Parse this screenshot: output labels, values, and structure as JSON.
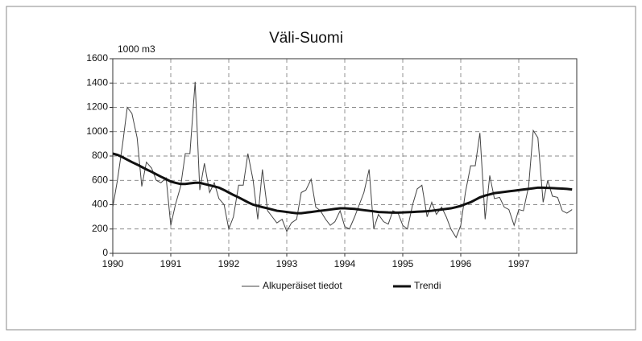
{
  "chart_data": {
    "type": "line",
    "title": "Väli-Suomi",
    "y_label": "1000 m3",
    "x": [
      1990,
      1990.08,
      1990.17,
      1990.25,
      1990.33,
      1990.42,
      1990.5,
      1990.58,
      1990.67,
      1990.75,
      1990.83,
      1990.92,
      1991,
      1991.08,
      1991.17,
      1991.25,
      1991.33,
      1991.42,
      1991.5,
      1991.58,
      1991.67,
      1991.75,
      1991.83,
      1991.92,
      1992,
      1992.08,
      1992.17,
      1992.25,
      1992.33,
      1992.42,
      1992.5,
      1992.58,
      1992.67,
      1992.75,
      1992.83,
      1992.92,
      1993,
      1993.08,
      1993.17,
      1993.25,
      1993.33,
      1993.42,
      1993.5,
      1993.58,
      1993.67,
      1993.75,
      1993.83,
      1993.92,
      1994,
      1994.08,
      1994.17,
      1994.25,
      1994.33,
      1994.42,
      1994.5,
      1994.58,
      1994.67,
      1994.75,
      1994.83,
      1994.92,
      1995,
      1995.08,
      1995.17,
      1995.25,
      1995.33,
      1995.42,
      1995.5,
      1995.58,
      1995.67,
      1995.75,
      1995.83,
      1995.92,
      1996,
      1996.08,
      1996.17,
      1996.25,
      1996.33,
      1996.42,
      1996.5,
      1996.58,
      1996.67,
      1996.75,
      1996.83,
      1996.92,
      1997,
      1997.08,
      1997.17,
      1997.25,
      1997.33,
      1997.42,
      1997.5,
      1997.58,
      1997.67,
      1997.75,
      1997.83,
      1997.92
    ],
    "series": [
      {
        "name": "Alkuperäiset tiedot",
        "color": "#444444",
        "width": 1,
        "values": [
          380,
          600,
          900,
          1200,
          1150,
          950,
          550,
          750,
          700,
          600,
          580,
          620,
          230,
          400,
          550,
          820,
          820,
          1410,
          520,
          740,
          500,
          580,
          450,
          400,
          200,
          300,
          560,
          560,
          820,
          600,
          280,
          690,
          350,
          300,
          250,
          280,
          180,
          250,
          280,
          500,
          520,
          610,
          380,
          350,
          280,
          230,
          260,
          350,
          220,
          200,
          300,
          400,
          500,
          690,
          200,
          320,
          260,
          240,
          350,
          330,
          230,
          200,
          400,
          530,
          560,
          300,
          420,
          320,
          380,
          300,
          200,
          130,
          230,
          500,
          720,
          720,
          990,
          280,
          640,
          450,
          460,
          380,
          360,
          230,
          360,
          350,
          550,
          1010,
          950,
          420,
          600,
          470,
          460,
          350,
          330,
          360
        ]
      },
      {
        "name": "Trendi",
        "color": "#111111",
        "width": 3,
        "values": [
          820,
          810,
          790,
          770,
          750,
          730,
          710,
          690,
          670,
          650,
          630,
          610,
          590,
          580,
          570,
          570,
          575,
          580,
          580,
          570,
          560,
          550,
          540,
          520,
          500,
          480,
          460,
          440,
          420,
          400,
          390,
          380,
          370,
          360,
          350,
          345,
          340,
          335,
          330,
          330,
          335,
          340,
          345,
          350,
          355,
          360,
          365,
          370,
          370,
          368,
          365,
          360,
          355,
          350,
          345,
          340,
          338,
          336,
          335,
          335,
          336,
          338,
          340,
          342,
          344,
          346,
          350,
          355,
          360,
          365,
          370,
          380,
          390,
          405,
          420,
          440,
          460,
          475,
          485,
          495,
          500,
          505,
          510,
          515,
          520,
          525,
          530,
          535,
          540,
          540,
          538,
          536,
          534,
          532,
          530,
          525
        ]
      }
    ],
    "xlim": [
      1990,
      1998
    ],
    "xticks": [
      1990,
      1991,
      1992,
      1993,
      1994,
      1995,
      1996,
      1997
    ],
    "ylim": [
      0,
      1600
    ],
    "yticks": [
      0,
      200,
      400,
      600,
      800,
      1000,
      1200,
      1400,
      1600
    ],
    "grid": true
  }
}
